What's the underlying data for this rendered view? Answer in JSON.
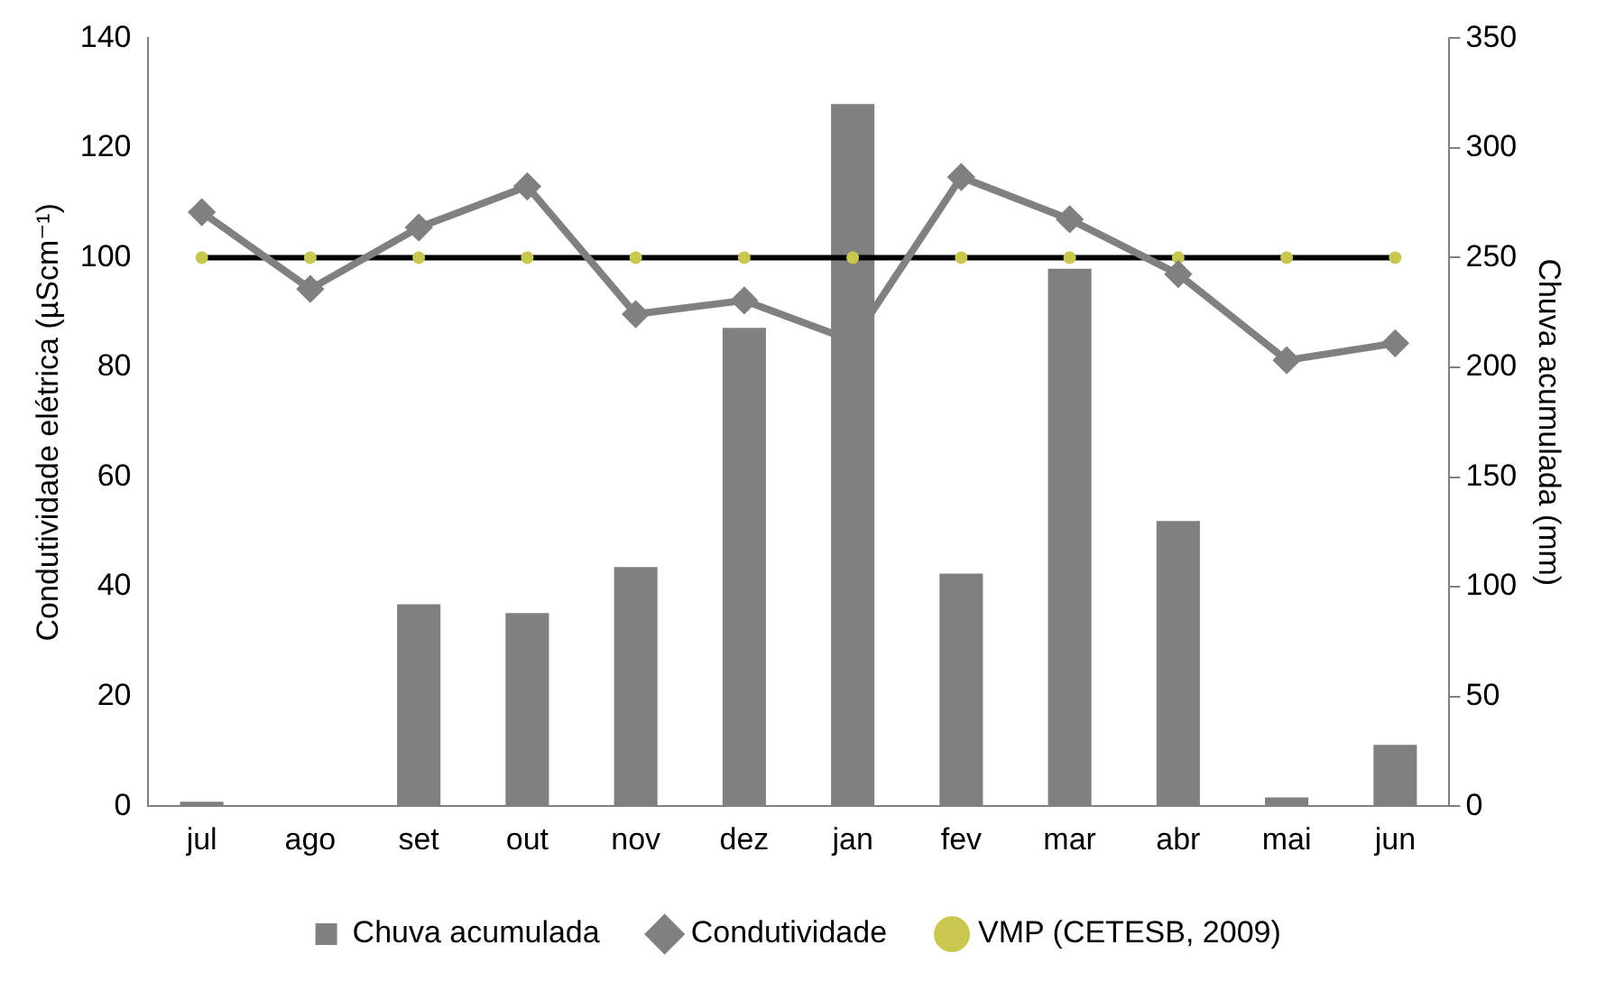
{
  "chart_data": {
    "type": "bar",
    "categories": [
      "jul",
      "ago",
      "set",
      "out",
      "nov",
      "dez",
      "jan",
      "fev",
      "mar",
      "abr",
      "mai",
      "jun"
    ],
    "ylabel": "Condutividade elétrica (µScm⁻¹)",
    "y2label": "Chuva acumulada (mm)",
    "series": [
      {
        "name": "Chuva acumulada",
        "axis": "y2",
        "color": "#808080",
        "values": [
          2,
          0,
          92,
          88,
          109,
          218,
          320,
          106,
          245,
          130,
          4,
          28
        ]
      },
      {
        "name": "Condutividade",
        "type": "line",
        "marker": "diamond",
        "color": "#808080",
        "values": [
          108.3,
          94.3,
          105.5,
          113,
          89.7,
          92.2,
          84.8,
          114.7,
          107,
          97,
          81.3,
          84.4
        ]
      },
      {
        "name": "VMP (CETESB, 2009)",
        "type": "line",
        "marker": "circle",
        "color": "#000000",
        "values": [
          100,
          100,
          100,
          100,
          100,
          100,
          100,
          100,
          100,
          100,
          100,
          100
        ]
      }
    ],
    "ylim": [
      0,
      140
    ],
    "yticks": [
      0,
      20,
      40,
      60,
      80,
      100,
      120,
      140
    ],
    "y2lim": [
      0,
      350
    ],
    "y2ticks": [
      0,
      50,
      100,
      150,
      200,
      250,
      300,
      350
    ],
    "grid": false,
    "legend": "bottom"
  }
}
